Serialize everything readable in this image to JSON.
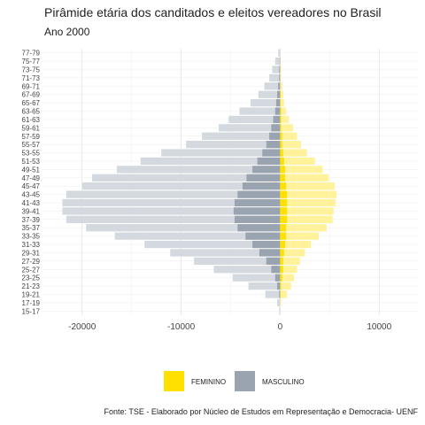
{
  "title": "Pirâmide etária dos canditados e eleitos vereadores no Brasil",
  "subtitle": "Ano 2000",
  "footer": "Fonte: TSE - Elaborado por Núcleo de Estudos em Representação e Democracia- UENF",
  "chart_data": {
    "type": "bar",
    "orientation": "horizontal",
    "categories": [
      "15-17",
      "17-19",
      "19-21",
      "21-23",
      "23-25",
      "25-27",
      "27-29",
      "29-31",
      "31-33",
      "33-35",
      "35-37",
      "37-39",
      "39-41",
      "41-43",
      "43-45",
      "45-47",
      "47-49",
      "49-51",
      "51-53",
      "53-55",
      "55-57",
      "57-59",
      "59-61",
      "61-63",
      "63-65",
      "65-67",
      "67-69",
      "69-71",
      "71-73",
      "73-75",
      "75-77",
      "77-79"
    ],
    "xlim": [
      -24000,
      14000
    ],
    "xticks": [
      -20000,
      -10000,
      0,
      10000
    ],
    "xtick_labels": [
      "-20000",
      "-10000",
      "0",
      "10000"
    ],
    "legend_position": "bottom",
    "grid": true,
    "colors": {
      "feminino_candidatos": "#fff29a",
      "feminino_eleitos": "#ffe000",
      "masculino_candidatos": "#d4d9df",
      "masculino_eleitos": "#9aa3b0"
    },
    "legend": [
      {
        "label": "FEMININO",
        "color": "#ffe000"
      },
      {
        "label": "MASCULINO",
        "color": "#9aa3b0"
      }
    ],
    "series": [
      {
        "sex": "MASCULINO",
        "group": "candidatos",
        "values": [
          -100,
          -300,
          -1500,
          -3200,
          -4800,
          -6700,
          -8700,
          -11100,
          -13700,
          -16700,
          -19600,
          -21600,
          -22000,
          -22000,
          -21600,
          -20000,
          -19000,
          -16500,
          -14100,
          -12000,
          -9500,
          -7900,
          -6200,
          -5200,
          -4100,
          -3000,
          -2200,
          -1600,
          -1100,
          -800,
          -500,
          -200
        ]
      },
      {
        "sex": "MASCULINO",
        "group": "eleitos",
        "values": [
          0,
          0,
          -100,
          -300,
          -500,
          -900,
          -1400,
          -2100,
          -2800,
          -3500,
          -4300,
          -4600,
          -4700,
          -4600,
          -4300,
          -3800,
          -3400,
          -2800,
          -2300,
          -1800,
          -1400,
          -1100,
          -900,
          -700,
          -500,
          -400,
          -300,
          -200,
          -100,
          -100,
          -50,
          0
        ]
      },
      {
        "sex": "FEMININO",
        "group": "candidatos",
        "values": [
          0,
          100,
          700,
          1100,
          1400,
          1700,
          2000,
          2500,
          3100,
          3900,
          4700,
          5300,
          5400,
          5600,
          5700,
          5500,
          4900,
          4300,
          3500,
          2700,
          2100,
          1700,
          1300,
          900,
          600,
          400,
          300,
          200,
          100,
          100,
          50,
          0
        ]
      },
      {
        "sex": "FEMININO",
        "group": "eleitos",
        "values": [
          0,
          0,
          50,
          100,
          200,
          300,
          300,
          400,
          500,
          600,
          600,
          700,
          700,
          700,
          700,
          600,
          500,
          500,
          400,
          300,
          200,
          200,
          100,
          100,
          100,
          50,
          50,
          0,
          0,
          0,
          0,
          0
        ]
      }
    ]
  }
}
